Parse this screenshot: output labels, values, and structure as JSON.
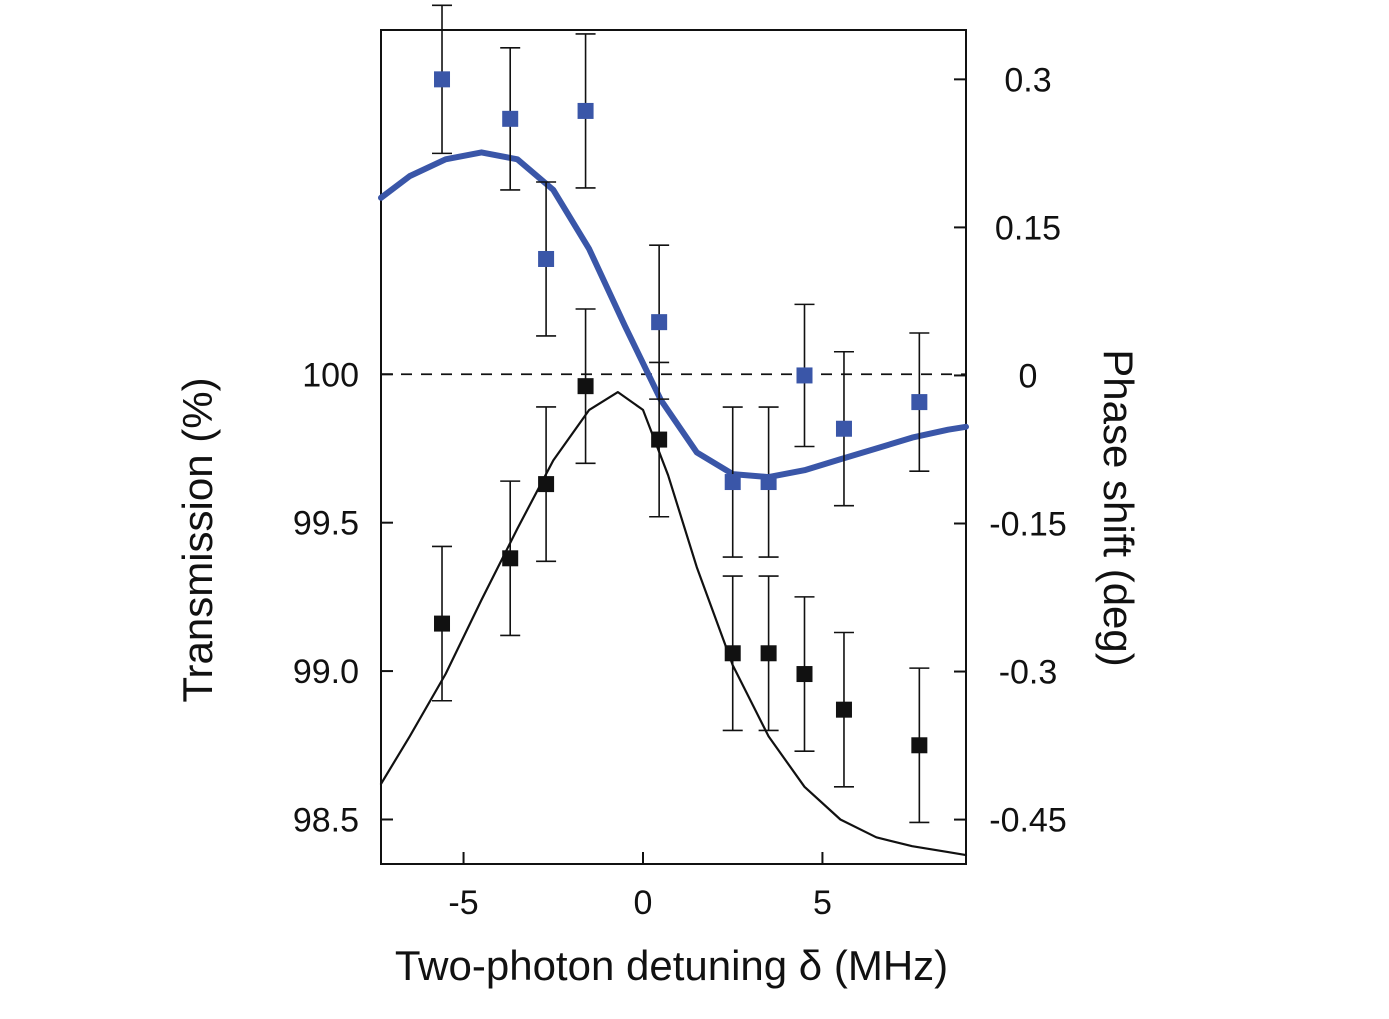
{
  "chart_data": {
    "type": "scatter",
    "title": "",
    "xlabel": "Two-photon detuning δ (MHz)",
    "ylabel_left": "Transmission (%)",
    "ylabel_right": "Phase shift (deg)",
    "xlim": [
      -7.3,
      9.0
    ],
    "ylim_left": [
      98.35,
      101.16
    ],
    "ylim_right": [
      -0.495,
      0.35
    ],
    "xticks": [
      -5,
      0,
      5
    ],
    "xtick_labels": [
      "-5",
      "0",
      "5"
    ],
    "yticks_left": [
      98.5,
      99.0,
      99.5,
      100.0
    ],
    "ytick_labels_left": [
      "98.5",
      "99.0",
      "99.5",
      "100"
    ],
    "yticks_right": [
      -0.45,
      -0.3,
      -0.15,
      0,
      0.15,
      0.3
    ],
    "ytick_labels_right": [
      "-0.45",
      "-0.3",
      "-0.15",
      "0",
      "0.15",
      "0.3"
    ],
    "reference_line": {
      "axis": "left",
      "y": 100.0,
      "style": "dashed"
    },
    "grid": false,
    "legend": "none",
    "series": [
      {
        "name": "",
        "axis": "left",
        "color": "#111111",
        "marker": "square",
        "points": [
          {
            "x": -5.6,
            "y": 99.16,
            "err": 0.26
          },
          {
            "x": -3.7,
            "y": 99.38,
            "err": 0.26
          },
          {
            "x": -2.7,
            "y": 99.63,
            "err": 0.26
          },
          {
            "x": -1.6,
            "y": 99.96,
            "err": 0.26
          },
          {
            "x": 0.45,
            "y": 99.78,
            "err": 0.26
          },
          {
            "x": 2.5,
            "y": 99.06,
            "err": 0.26
          },
          {
            "x": 3.5,
            "y": 99.06,
            "err": 0.26
          },
          {
            "x": 4.5,
            "y": 98.99,
            "err": 0.26
          },
          {
            "x": 5.6,
            "y": 98.87,
            "err": 0.26
          },
          {
            "x": 7.7,
            "y": 98.75,
            "err": 0.26
          }
        ]
      },
      {
        "name": "",
        "axis": "right",
        "color": "#3a56a8",
        "marker": "square",
        "points": [
          {
            "x": -5.6,
            "y": 0.3,
            "err": 0.075
          },
          {
            "x": -3.7,
            "y": 0.26,
            "err": 0.072
          },
          {
            "x": -2.7,
            "y": 0.118,
            "err": 0.078
          },
          {
            "x": -1.6,
            "y": 0.268,
            "err": 0.078
          },
          {
            "x": 0.45,
            "y": 0.054,
            "err": 0.078
          },
          {
            "x": 2.5,
            "y": -0.108,
            "err": 0.076
          },
          {
            "x": 3.5,
            "y": -0.108,
            "err": 0.076
          },
          {
            "x": 4.5,
            "y": 0.0,
            "err": 0.072
          },
          {
            "x": 5.6,
            "y": -0.054,
            "err": 0.078
          },
          {
            "x": 7.7,
            "y": -0.027,
            "err": 0.07
          }
        ]
      }
    ],
    "fits": [
      {
        "axis": "left",
        "color": "#111111",
        "points": [
          [
            -7.3,
            98.62
          ],
          [
            -6.5,
            98.78
          ],
          [
            -5.5,
            98.99
          ],
          [
            -4.5,
            99.24
          ],
          [
            -3.5,
            99.48
          ],
          [
            -2.5,
            99.71
          ],
          [
            -1.5,
            99.88
          ],
          [
            -0.7,
            99.94
          ],
          [
            0.0,
            99.88
          ],
          [
            0.7,
            99.66
          ],
          [
            1.5,
            99.35
          ],
          [
            2.5,
            99.02
          ],
          [
            3.5,
            98.78
          ],
          [
            4.5,
            98.61
          ],
          [
            5.5,
            98.5
          ],
          [
            6.5,
            98.44
          ],
          [
            7.5,
            98.41
          ],
          [
            8.5,
            98.39
          ],
          [
            9.0,
            98.38
          ]
        ]
      },
      {
        "axis": "right",
        "color": "#3a56a8",
        "points": [
          [
            -7.3,
            0.18
          ],
          [
            -6.5,
            0.202
          ],
          [
            -5.5,
            0.219
          ],
          [
            -4.5,
            0.226
          ],
          [
            -3.5,
            0.219
          ],
          [
            -2.5,
            0.188
          ],
          [
            -1.5,
            0.128
          ],
          [
            -0.5,
            0.05
          ],
          [
            0.5,
            -0.025
          ],
          [
            1.5,
            -0.078
          ],
          [
            2.5,
            -0.1
          ],
          [
            3.5,
            -0.103
          ],
          [
            4.5,
            -0.096
          ],
          [
            5.5,
            -0.085
          ],
          [
            6.5,
            -0.074
          ],
          [
            7.5,
            -0.063
          ],
          [
            8.5,
            -0.055
          ],
          [
            9.0,
            -0.052
          ]
        ]
      }
    ]
  }
}
